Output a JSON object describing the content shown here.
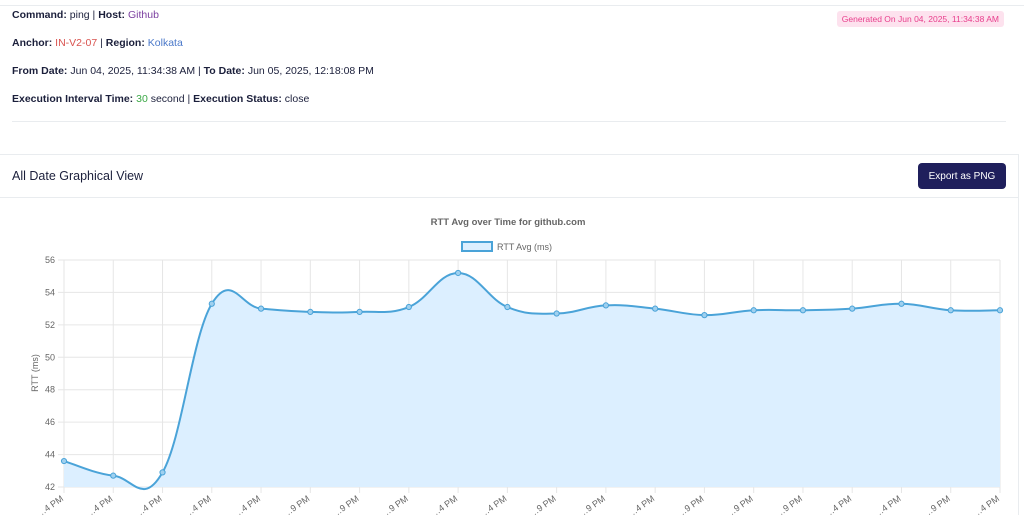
{
  "info": {
    "command_label": "Command:",
    "command_value": "ping",
    "sep": "|",
    "host_label": "Host:",
    "host_value": "Github",
    "anchor_label": "Anchor:",
    "anchor_value": "IN-V2-07",
    "region_label": "Region:",
    "region_value": "Kolkata",
    "from_label": "From Date:",
    "from_value": "Jun 04, 2025, 11:34:38 AM",
    "to_label": "To Date:",
    "to_value": "Jun 05, 2025, 12:18:08 PM",
    "interval_label": "Execution Interval Time:",
    "interval_value": "30",
    "interval_unit": "second",
    "status_label": "Execution Status:",
    "status_value": "close",
    "generated": "Generated On Jun 04, 2025, 11:34:38 AM"
  },
  "graph": {
    "title": "All Date Graphical View",
    "export_label": "Export as PNG"
  },
  "colors": {
    "line": "#4aa3d8",
    "fill": "#dcefff",
    "grid": "#e6e6e6",
    "navy_button": "#1f1f5c"
  },
  "chart_data": {
    "type": "area",
    "title": "RTT Avg over Time for github.com",
    "ylabel": "RTT (ms)",
    "xlabel": "",
    "legend": "top-center",
    "grid": true,
    "ylim": [
      42,
      56
    ],
    "yticks": [
      42,
      44,
      46,
      48,
      50,
      52,
      54,
      56
    ],
    "x_tick_labels": [
      "…4 PM",
      "…4 PM",
      "…4 PM",
      "…4 PM",
      "…4 PM",
      "…9 PM",
      "…9 PM",
      "…9 PM",
      "…4 PM",
      "…4 PM",
      "…9 PM",
      "…9 PM",
      "…4 PM",
      "…9 PM",
      "…9 PM",
      "…9 PM",
      "…4 PM",
      "…4 PM",
      "…9 PM",
      "…4 PM"
    ],
    "series": [
      {
        "name": "RTT Avg (ms)",
        "values": [
          43.6,
          42.7,
          42.9,
          53.3,
          53.0,
          52.8,
          52.8,
          53.1,
          55.2,
          53.1,
          52.7,
          53.2,
          53.0,
          52.6,
          52.9,
          52.9,
          53.0,
          53.3,
          52.9,
          52.9
        ]
      }
    ]
  }
}
